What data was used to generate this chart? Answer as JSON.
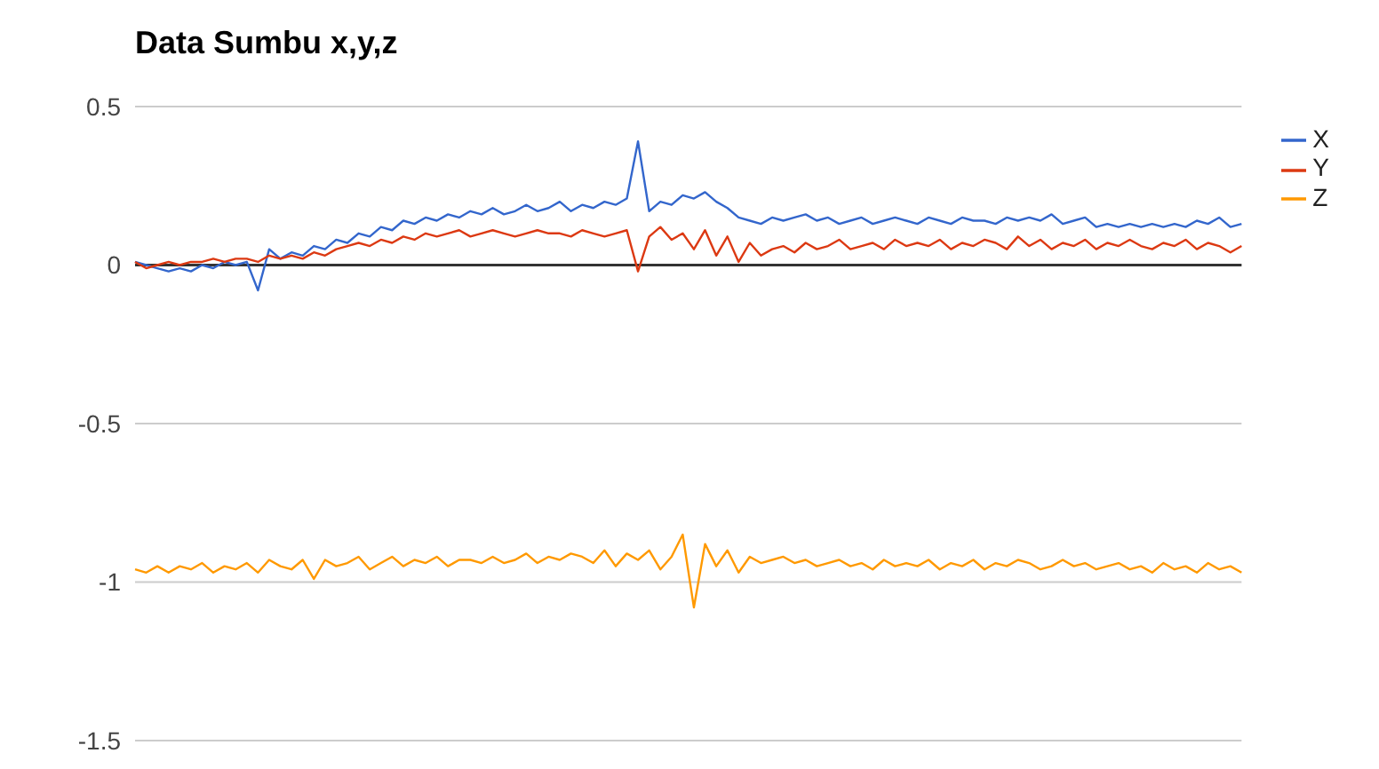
{
  "chart_data": {
    "type": "line",
    "title": "Data Sumbu x,y,z",
    "categories": [
      null,
      null,
      null,
      null,
      null,
      null,
      null,
      null,
      null,
      null,
      null,
      null,
      null,
      null,
      null,
      null,
      null,
      null,
      null,
      null,
      null,
      null,
      null,
      null,
      null,
      null,
      null,
      null,
      null,
      null,
      null,
      null,
      null,
      null,
      null,
      null,
      null,
      null,
      null,
      null,
      null,
      null,
      null,
      null,
      null,
      null,
      null,
      null,
      null,
      null,
      null,
      null,
      null,
      null,
      null,
      null,
      null,
      null,
      null,
      null,
      null,
      null,
      null,
      null,
      null,
      null,
      null,
      null,
      null,
      null,
      null,
      null,
      null,
      null,
      null,
      null,
      null,
      null,
      null,
      null,
      null,
      null,
      null,
      null,
      null,
      null,
      null,
      null,
      null,
      null,
      null,
      null,
      null,
      null,
      null,
      null,
      null,
      null,
      null,
      null
    ],
    "series": [
      {
        "name": "X",
        "color": "#3366cc",
        "values": [
          0.01,
          0,
          -0.01,
          -0.02,
          -0.01,
          -0.02,
          0,
          -0.01,
          0.01,
          0,
          0.01,
          -0.08,
          0.05,
          0.02,
          0.04,
          0.03,
          0.06,
          0.05,
          0.08,
          0.07,
          0.1,
          0.09,
          0.12,
          0.11,
          0.14,
          0.13,
          0.15,
          0.14,
          0.16,
          0.15,
          0.17,
          0.16,
          0.18,
          0.16,
          0.17,
          0.19,
          0.17,
          0.18,
          0.2,
          0.17,
          0.19,
          0.18,
          0.2,
          0.19,
          0.21,
          0.39,
          0.17,
          0.2,
          0.19,
          0.22,
          0.21,
          0.23,
          0.2,
          0.18,
          0.15,
          0.14,
          0.13,
          0.15,
          0.14,
          0.15,
          0.16,
          0.14,
          0.15,
          0.13,
          0.14,
          0.15,
          0.13,
          0.14,
          0.15,
          0.14,
          0.13,
          0.15,
          0.14,
          0.13,
          0.15,
          0.14,
          0.14,
          0.13,
          0.15,
          0.14,
          0.15,
          0.14,
          0.16,
          0.13,
          0.14,
          0.15,
          0.12,
          0.13,
          0.12,
          0.13,
          0.12,
          0.13,
          0.12,
          0.13,
          0.12,
          0.14,
          0.13,
          0.15,
          0.12,
          0.13
        ]
      },
      {
        "name": "Y",
        "color": "#dc3912",
        "values": [
          0.01,
          -0.01,
          0,
          0.01,
          0,
          0.01,
          0.01,
          0.02,
          0.01,
          0.02,
          0.02,
          0.01,
          0.03,
          0.02,
          0.03,
          0.02,
          0.04,
          0.03,
          0.05,
          0.06,
          0.07,
          0.06,
          0.08,
          0.07,
          0.09,
          0.08,
          0.1,
          0.09,
          0.1,
          0.11,
          0.09,
          0.1,
          0.11,
          0.1,
          0.09,
          0.1,
          0.11,
          0.1,
          0.1,
          0.09,
          0.11,
          0.1,
          0.09,
          0.1,
          0.11,
          -0.02,
          0.09,
          0.12,
          0.08,
          0.1,
          0.05,
          0.11,
          0.03,
          0.09,
          0.01,
          0.07,
          0.03,
          0.05,
          0.06,
          0.04,
          0.07,
          0.05,
          0.06,
          0.08,
          0.05,
          0.06,
          0.07,
          0.05,
          0.08,
          0.06,
          0.07,
          0.06,
          0.08,
          0.05,
          0.07,
          0.06,
          0.08,
          0.07,
          0.05,
          0.09,
          0.06,
          0.08,
          0.05,
          0.07,
          0.06,
          0.08,
          0.05,
          0.07,
          0.06,
          0.08,
          0.06,
          0.05,
          0.07,
          0.06,
          0.08,
          0.05,
          0.07,
          0.06,
          0.04,
          0.06
        ]
      },
      {
        "name": "Z",
        "color": "#ff9900",
        "values": [
          -0.96,
          -0.97,
          -0.95,
          -0.97,
          -0.95,
          -0.96,
          -0.94,
          -0.97,
          -0.95,
          -0.96,
          -0.94,
          -0.97,
          -0.93,
          -0.95,
          -0.96,
          -0.93,
          -0.99,
          -0.93,
          -0.95,
          -0.94,
          -0.92,
          -0.96,
          -0.94,
          -0.92,
          -0.95,
          -0.93,
          -0.94,
          -0.92,
          -0.95,
          -0.93,
          -0.93,
          -0.94,
          -0.92,
          -0.94,
          -0.93,
          -0.91,
          -0.94,
          -0.92,
          -0.93,
          -0.91,
          -0.92,
          -0.94,
          -0.9,
          -0.95,
          -0.91,
          -0.93,
          -0.9,
          -0.96,
          -0.92,
          -0.85,
          -1.08,
          -0.88,
          -0.95,
          -0.9,
          -0.97,
          -0.92,
          -0.94,
          -0.93,
          -0.92,
          -0.94,
          -0.93,
          -0.95,
          -0.94,
          -0.93,
          -0.95,
          -0.94,
          -0.96,
          -0.93,
          -0.95,
          -0.94,
          -0.95,
          -0.93,
          -0.96,
          -0.94,
          -0.95,
          -0.93,
          -0.96,
          -0.94,
          -0.95,
          -0.93,
          -0.94,
          -0.96,
          -0.95,
          -0.93,
          -0.95,
          -0.94,
          -0.96,
          -0.95,
          -0.94,
          -0.96,
          -0.95,
          -0.97,
          -0.94,
          -0.96,
          -0.95,
          -0.97,
          -0.94,
          -0.96,
          -0.95,
          -0.97
        ]
      }
    ],
    "ylim": [
      -1.5,
      0.5
    ],
    "yticks": [
      0.5,
      0,
      -0.5,
      -1,
      -1.5
    ],
    "ref_lines": [
      {
        "axis": "y",
        "value": 0,
        "color": "#333333"
      }
    ],
    "grid": "y",
    "legend": "top right",
    "tick_labels": "y",
    "marker": "none",
    "line_style": "solid"
  }
}
